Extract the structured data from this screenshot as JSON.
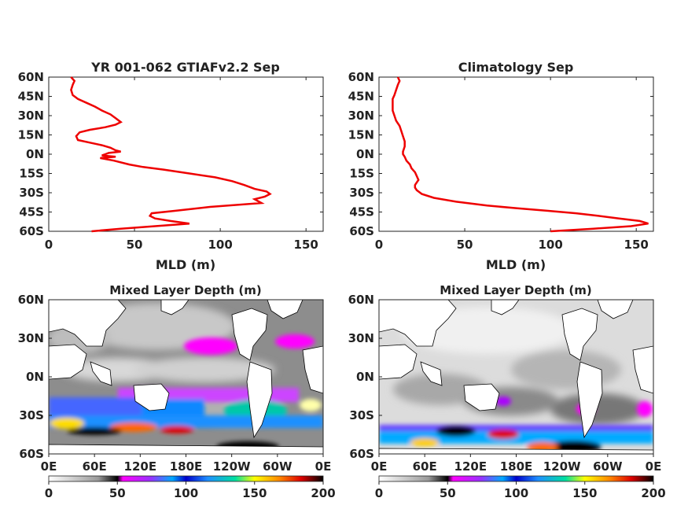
{
  "chart_data": [
    {
      "type": "line",
      "title": "YR 001-062 GTIAFv2.2 Sep",
      "xlabel": "MLD (m)",
      "xlim": [
        0,
        160
      ],
      "xticks": [
        "0",
        "50",
        "100",
        "150"
      ],
      "ylim": [
        -60,
        60
      ],
      "yticks": [
        "60N",
        "45N",
        "30N",
        "15N",
        "0N",
        "15S",
        "30S",
        "45S",
        "60S"
      ],
      "series": [
        {
          "color": "#ee0000",
          "lat": [
            60,
            57,
            54,
            50,
            46,
            43,
            40,
            37,
            34,
            31,
            28,
            25,
            23,
            21,
            19,
            17,
            14,
            11,
            9,
            7,
            5,
            3,
            2,
            1,
            0,
            -1,
            -2,
            -3,
            -5,
            -8,
            -10,
            -12,
            -15,
            -18,
            -21,
            -24,
            -27,
            -29,
            -31,
            -33,
            -35,
            -38,
            -41,
            -44,
            -46,
            -48,
            -50,
            -52,
            -54,
            -56,
            -58,
            -60
          ],
          "values": [
            13,
            15,
            14,
            13,
            14,
            17,
            22,
            27,
            31,
            36,
            39,
            42,
            39,
            33,
            24,
            18,
            16,
            17,
            24,
            31,
            36,
            39,
            42,
            35,
            33,
            31,
            39,
            30,
            38,
            47,
            55,
            67,
            82,
            97,
            107,
            114,
            120,
            127,
            129,
            126,
            120,
            124,
            94,
            74,
            60,
            59,
            62,
            71,
            82,
            62,
            42,
            25
          ]
        }
      ]
    },
    {
      "type": "line",
      "title": "Climatology Sep",
      "xlabel": "MLD (m)",
      "xlim": [
        0,
        160
      ],
      "xticks": [
        "0",
        "50",
        "100",
        "150"
      ],
      "ylim": [
        -60,
        60
      ],
      "yticks": [
        "60N",
        "45N",
        "30N",
        "15N",
        "0N",
        "15S",
        "30S",
        "45S",
        "60S"
      ],
      "series": [
        {
          "color": "#ee0000",
          "lat": [
            60,
            57,
            54,
            50,
            46,
            43,
            40,
            37,
            34,
            30,
            26,
            22,
            18,
            14,
            10,
            6,
            2,
            0,
            -2,
            -5,
            -8,
            -11,
            -14,
            -17,
            -20,
            -22,
            -24,
            -26,
            -28,
            -31,
            -34,
            -37,
            -40,
            -42,
            -44,
            -46,
            -48,
            -50,
            -52,
            -54,
            -56,
            -58,
            -60
          ],
          "values": [
            11,
            12,
            11,
            10,
            9,
            8,
            8,
            8,
            8,
            9,
            10,
            12,
            13,
            14,
            15,
            15,
            14,
            14,
            15,
            16,
            18,
            19,
            21,
            22,
            23,
            22,
            21,
            21,
            22,
            25,
            32,
            45,
            63,
            80,
            98,
            115,
            128,
            140,
            152,
            157,
            147,
            125,
            100
          ]
        }
      ]
    },
    {
      "type": "heatmap",
      "title": "Mixed Layer Depth (m)",
      "xticks": [
        "0E",
        "60E",
        "120E",
        "180E",
        "120W",
        "60W",
        "0E"
      ],
      "yticks": [
        "60N",
        "30N",
        "0N",
        "30S",
        "60S"
      ],
      "colorbar": {
        "ticks": [
          "0",
          "50",
          "100",
          "150",
          "200"
        ],
        "range": [
          0,
          200
        ]
      }
    },
    {
      "type": "heatmap",
      "title": "Mixed Layer Depth (m)",
      "xticks": [
        "0E",
        "60E",
        "120E",
        "180E",
        "120W",
        "60W",
        "0E"
      ],
      "yticks": [
        "60N",
        "30N",
        "0N",
        "30S",
        "60S"
      ],
      "colorbar": {
        "ticks": [
          "0",
          "50",
          "100",
          "150",
          "200"
        ],
        "range": [
          0,
          200
        ]
      }
    }
  ]
}
